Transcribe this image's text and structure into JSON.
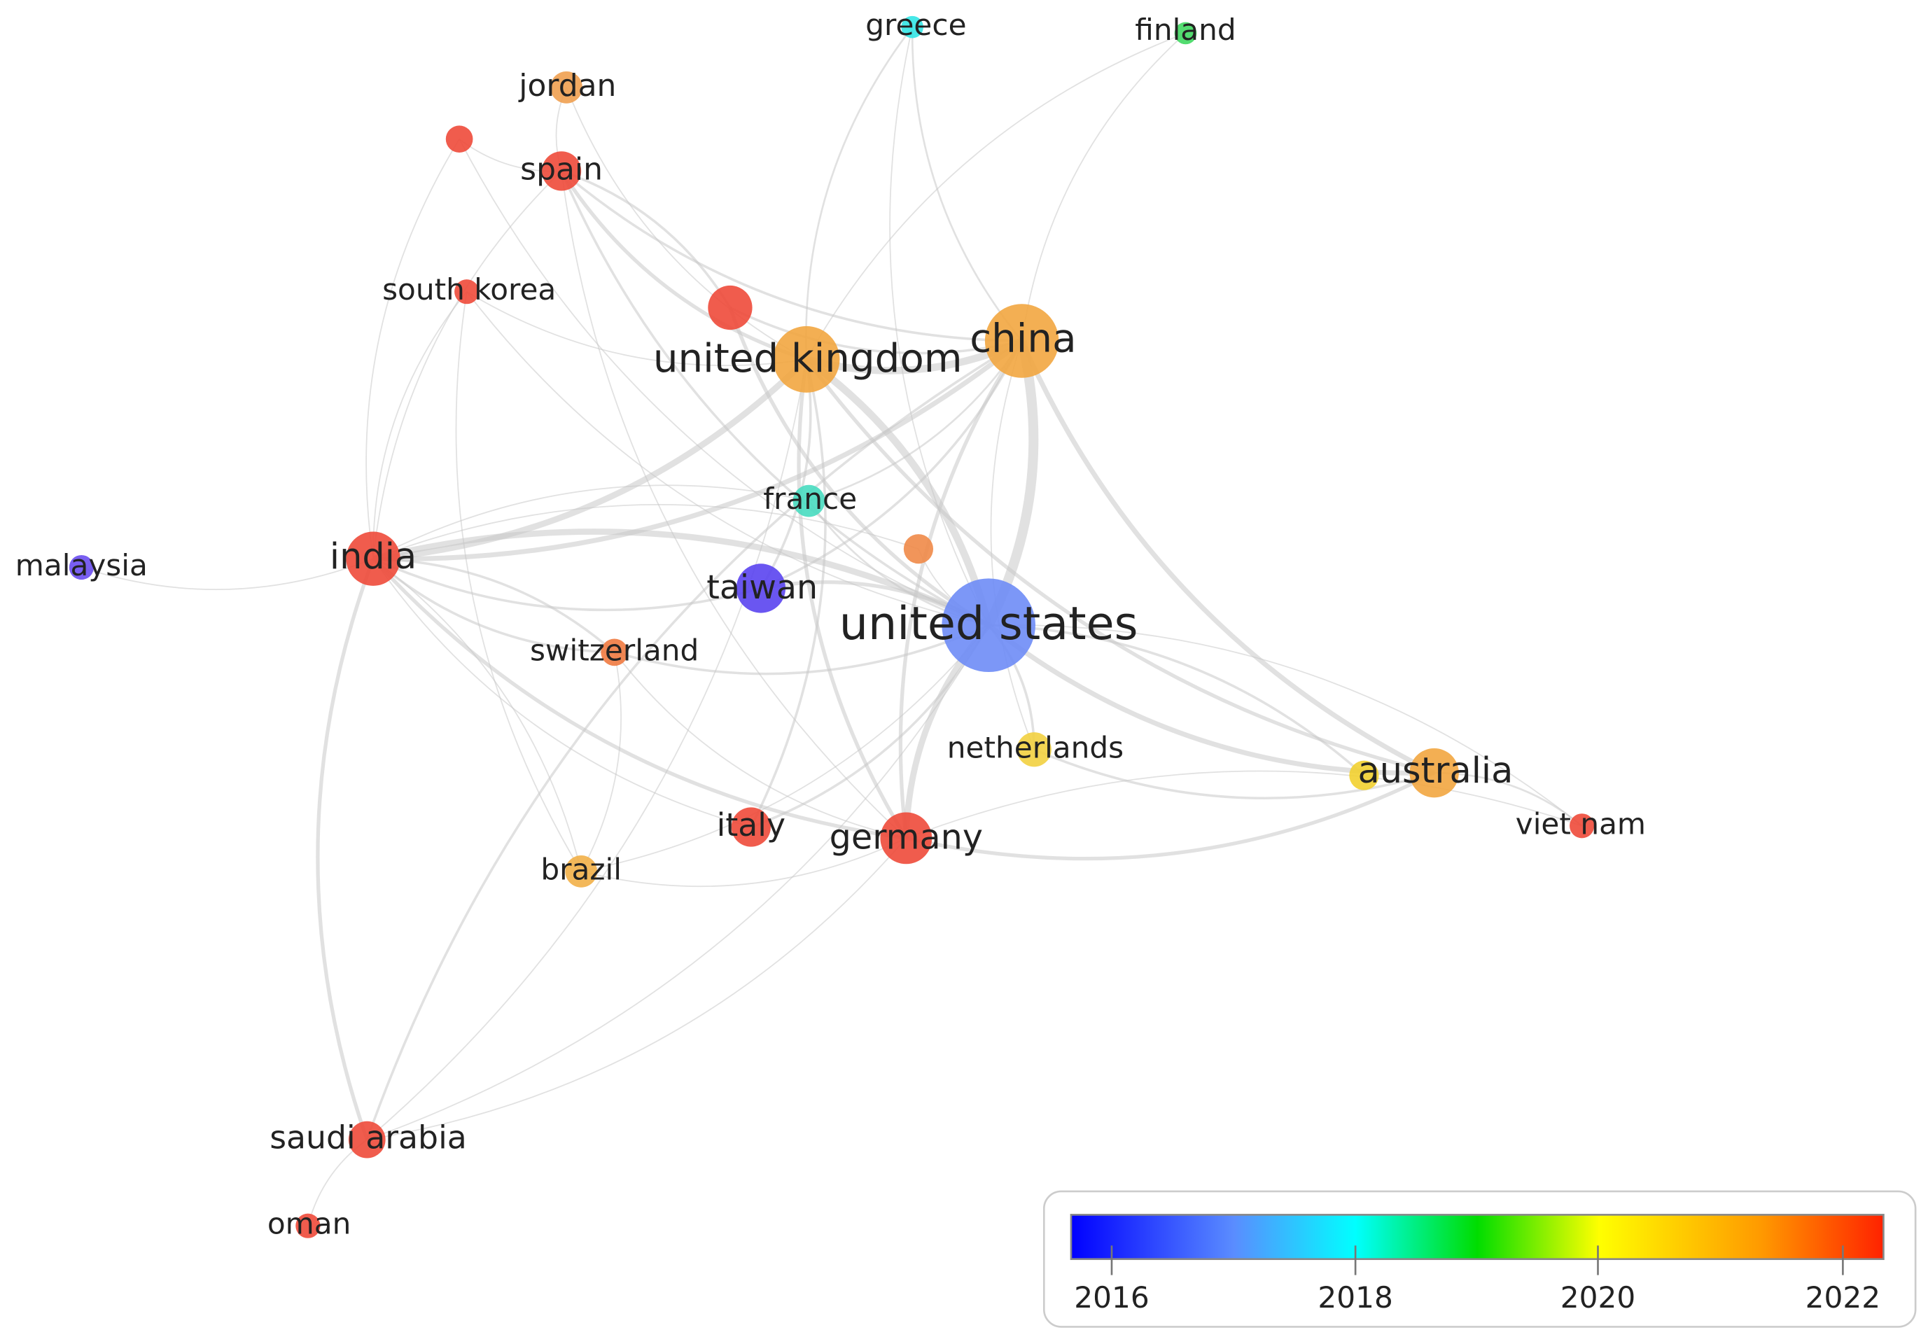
{
  "nodes": [
    {
      "label": "greece",
      "color": "#33e6e6"
    },
    {
      "label": "finland",
      "color": "#40d860"
    },
    {
      "label": "jordan",
      "color": "#f0a050"
    },
    {
      "label": "spain",
      "color": "#ee4a3a"
    },
    {
      "label": "south korea",
      "color": "#ee4a3a"
    },
    {
      "label": "united kingdom",
      "color": "#f2a640"
    },
    {
      "label": "china",
      "color": "#f2a640"
    },
    {
      "label": "france",
      "color": "#48dcc0"
    },
    {
      "label": "malaysia",
      "color": "#6a4ef0"
    },
    {
      "label": "india",
      "color": "#ee4a3a"
    },
    {
      "label": "taiwan",
      "color": "#5a44f0"
    },
    {
      "label": "united states",
      "color": "#6e8cf6"
    },
    {
      "label": "switzerland",
      "color": "#f07a40"
    },
    {
      "label": "netherlands",
      "color": "#f2d040"
    },
    {
      "label": "australia",
      "color": "#f2a640"
    },
    {
      "label": "viet nam",
      "color": "#ee4a3a"
    },
    {
      "label": "italy",
      "color": "#ee4a3a"
    },
    {
      "label": "germany",
      "color": "#ee4a3a"
    },
    {
      "label": "brazil",
      "color": "#f2b048"
    },
    {
      "label": "saudi arabia",
      "color": "#ee4a3a"
    },
    {
      "label": "oman",
      "color": "#ee4a3a"
    }
  ],
  "colorbar": {
    "ticks": [
      "2016",
      "2018",
      "2020",
      "2022"
    ]
  }
}
